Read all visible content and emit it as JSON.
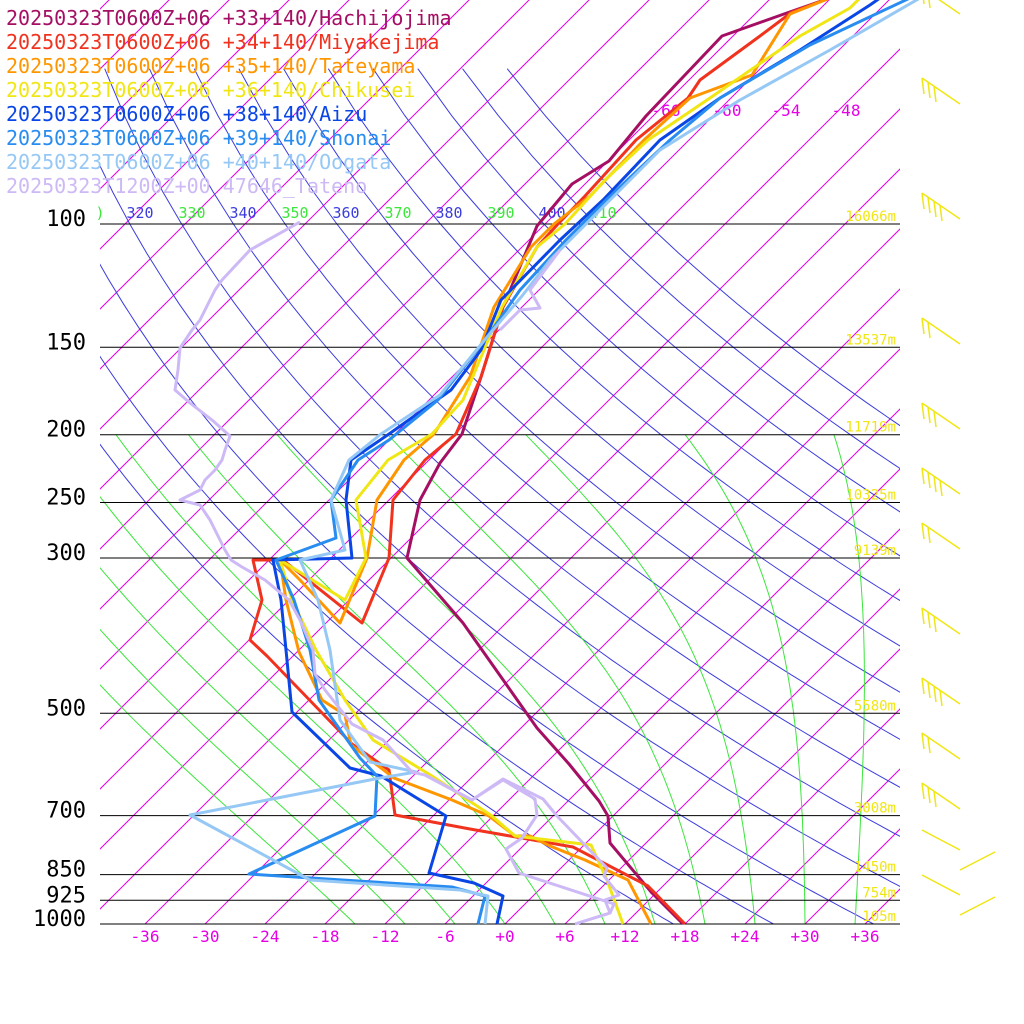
{
  "chart_data": {
    "type": "line",
    "legend": [
      {
        "label": "20250323T0600Z+06 +33+140/Hachijojima",
        "color": "#a50f63"
      },
      {
        "label": "20250323T0600Z+06 +34+140/Miyakejima",
        "color": "#f0321e"
      },
      {
        "label": "20250323T0600Z+06 +35+140/Tateyama",
        "color": "#ff9600"
      },
      {
        "label": "20250323T0600Z+06 +36+140/Chikusei",
        "color": "#f0e614"
      },
      {
        "label": "20250323T0600Z+06 +38+140/Aizu",
        "color": "#0a46e6"
      },
      {
        "label": "20250323T0600Z+06 +39+140/Shonai",
        "color": "#288cf0"
      },
      {
        "label": "20250323T0600Z+06 +40+140/Oogata",
        "color": "#96c8f5"
      },
      {
        "label": "20250323T1200Z+00 47646_Tateno",
        "color": "#cdb9f5"
      }
    ],
    "pressure_levels": [
      100,
      150,
      200,
      250,
      300,
      500,
      700,
      850,
      925,
      1000
    ],
    "pressure_labels": [
      "100",
      "150",
      "200",
      "250",
      "300",
      "500",
      "700",
      "850",
      "925",
      "1000"
    ],
    "height_labels": [
      {
        "p": 100,
        "label": "16066m"
      },
      {
        "p": 150,
        "label": "13537m"
      },
      {
        "p": 200,
        "label": "11719m"
      },
      {
        "p": 250,
        "label": "10325m"
      },
      {
        "p": 300,
        "label": "9139m"
      },
      {
        "p": 500,
        "label": "5580m"
      },
      {
        "p": 700,
        "label": "3008m"
      },
      {
        "p": 850,
        "label": "1450m"
      },
      {
        "p": 925,
        "label": "754m"
      },
      {
        "p": 1000,
        "label": "105m"
      }
    ],
    "temp_axis_labels": [
      "-36",
      "-30",
      "-24",
      "-18",
      "-12",
      "-6",
      "+0",
      "+6",
      "+12",
      "+18",
      "+24",
      "+30",
      "+36"
    ],
    "theta_labels": [
      ")",
      "320",
      "330",
      "340",
      "350",
      "360",
      "370",
      "380",
      "390",
      "400",
      "410"
    ],
    "upper_isotherm_labels": [
      "-66",
      "-60",
      "-54",
      "-48"
    ],
    "colors": {
      "isobar": "#000000",
      "isotherm": "#e600e6",
      "theta": "#3c3cdc",
      "theta_e": "#3ce63c",
      "height": "#f0e614",
      "wind": "#f0e614"
    }
  }
}
